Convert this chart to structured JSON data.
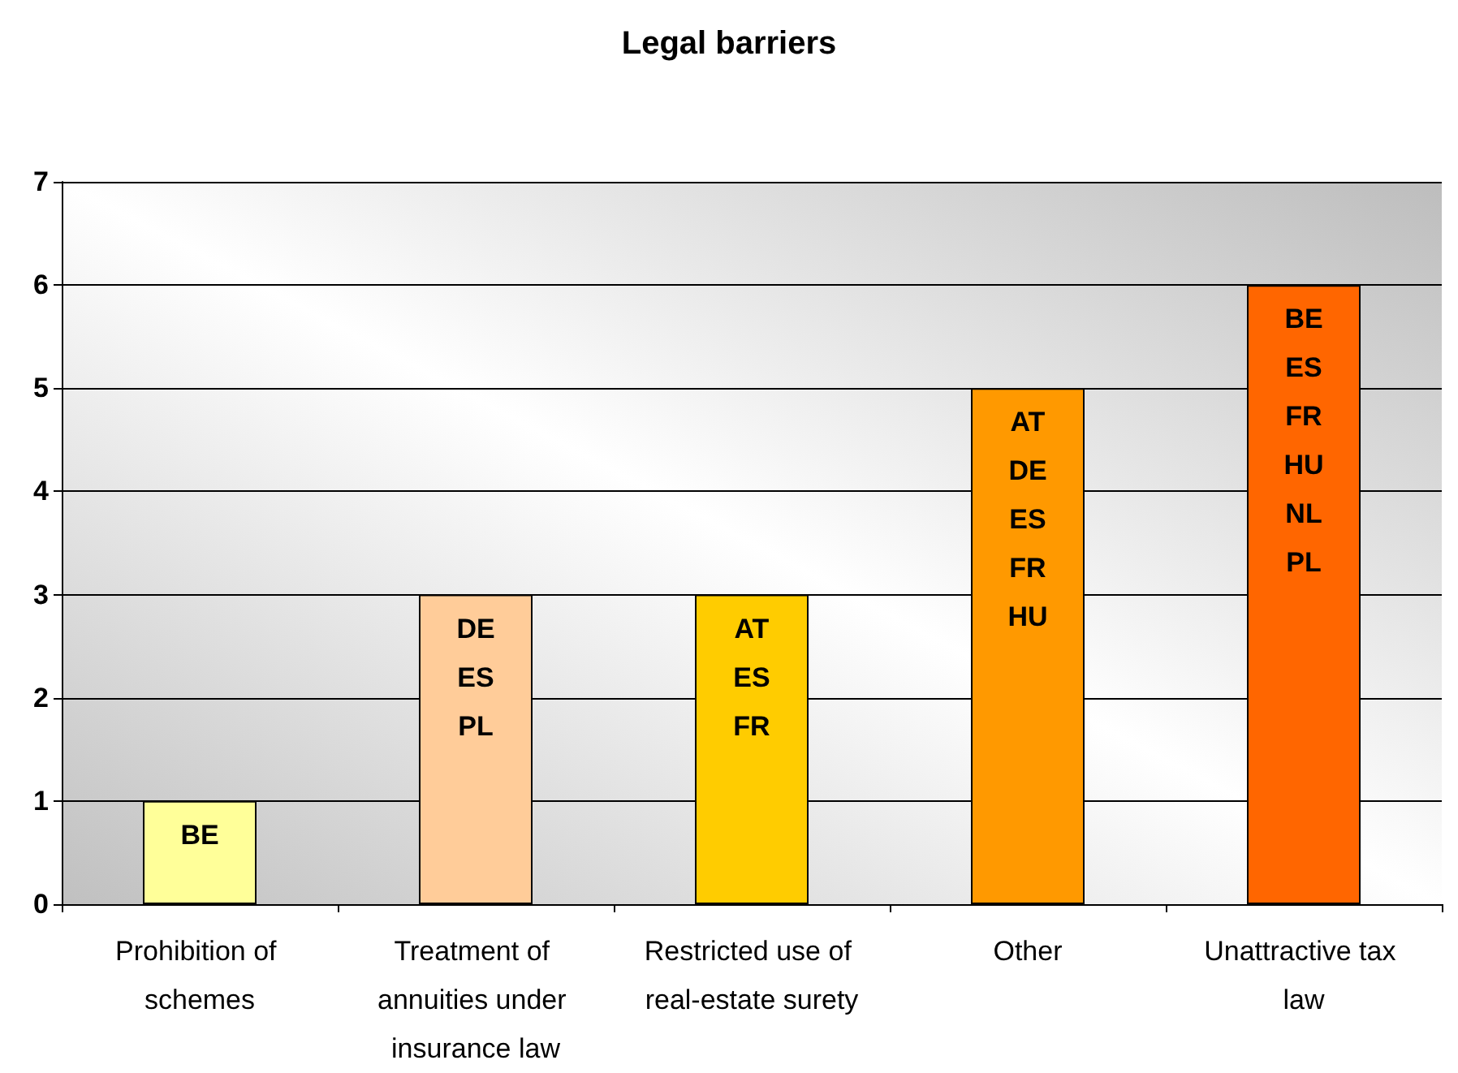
{
  "chart_data": {
    "type": "bar",
    "title": "Legal barriers",
    "categories": [
      "Prohibition of schemes",
      "Treatment of annuities under insurance law",
      "Restricted use of real-estate surety",
      "Other",
      "Unattractive tax law"
    ],
    "values": [
      1,
      3,
      3,
      5,
      6
    ],
    "colors": [
      "#ffff99",
      "#ffcc99",
      "#ffcc00",
      "#ff9900",
      "#ff6600"
    ],
    "value_labels": [
      "BE",
      "DE\nES\nPL",
      "AT\nES\nFR",
      "AT\nDE\nES\nFR\nHU",
      "BE\nES\nFR\nHU\nNL\nPL"
    ],
    "ylim": [
      0,
      7
    ],
    "yticks": [
      0,
      1,
      2,
      3,
      4,
      5,
      6,
      7
    ],
    "grid": "y"
  }
}
